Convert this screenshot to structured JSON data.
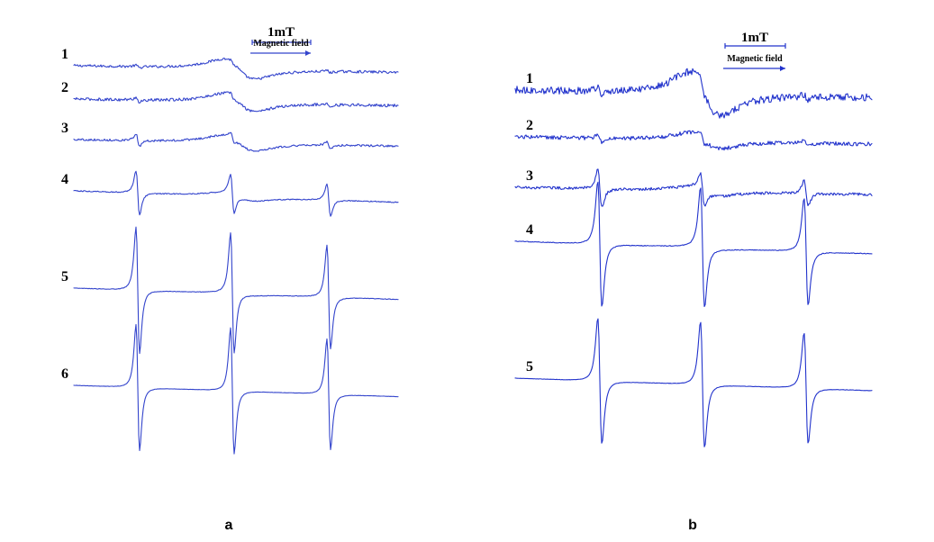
{
  "chart_data": [
    {
      "type": "line",
      "panel_label": "a",
      "scale_bar": {
        "value": "1mT",
        "caption": "Magnetic field"
      },
      "line_color": "#3344cc",
      "series": [
        {
          "label": "1",
          "lines": [
            0.02,
            0.02,
            0.02
          ],
          "noise": 0.35,
          "bump": 1.8
        },
        {
          "label": "2",
          "lines": [
            0.04,
            0.04,
            0.03
          ],
          "noise": 0.4,
          "bump": 1.6
        },
        {
          "label": "3",
          "lines": [
            0.1,
            0.06,
            0.06
          ],
          "noise": 0.28,
          "bump": 1.4
        },
        {
          "label": "4",
          "lines": [
            0.35,
            0.3,
            0.25
          ],
          "noise": 0.15,
          "bump": 0.7
        },
        {
          "label": "5",
          "lines": [
            1.0,
            0.95,
            0.82
          ],
          "noise": 0.08,
          "bump": 0.2
        },
        {
          "label": "6",
          "lines": [
            1.0,
            1.0,
            0.88
          ],
          "noise": 0.04,
          "bump": 0.0
        }
      ]
    },
    {
      "type": "line",
      "panel_label": "b",
      "scale_bar": {
        "value": "1mT",
        "caption": "Magnetic field"
      },
      "line_color": "#2233cc",
      "series": [
        {
          "label": "1",
          "lines": [
            0.06,
            0.06,
            0.04
          ],
          "noise": 1.0,
          "bump": 4.0
        },
        {
          "label": "2",
          "lines": [
            0.06,
            0.06,
            0.05
          ],
          "noise": 0.55,
          "bump": 1.4
        },
        {
          "label": "3",
          "lines": [
            0.3,
            0.25,
            0.2
          ],
          "noise": 0.4,
          "bump": 0.8
        },
        {
          "label": "4",
          "lines": [
            1.0,
            0.95,
            0.85
          ],
          "noise": 0.1,
          "bump": 0.2
        },
        {
          "label": "5",
          "lines": [
            1.0,
            1.0,
            0.88
          ],
          "noise": 0.05,
          "bump": 0.0
        }
      ]
    }
  ]
}
